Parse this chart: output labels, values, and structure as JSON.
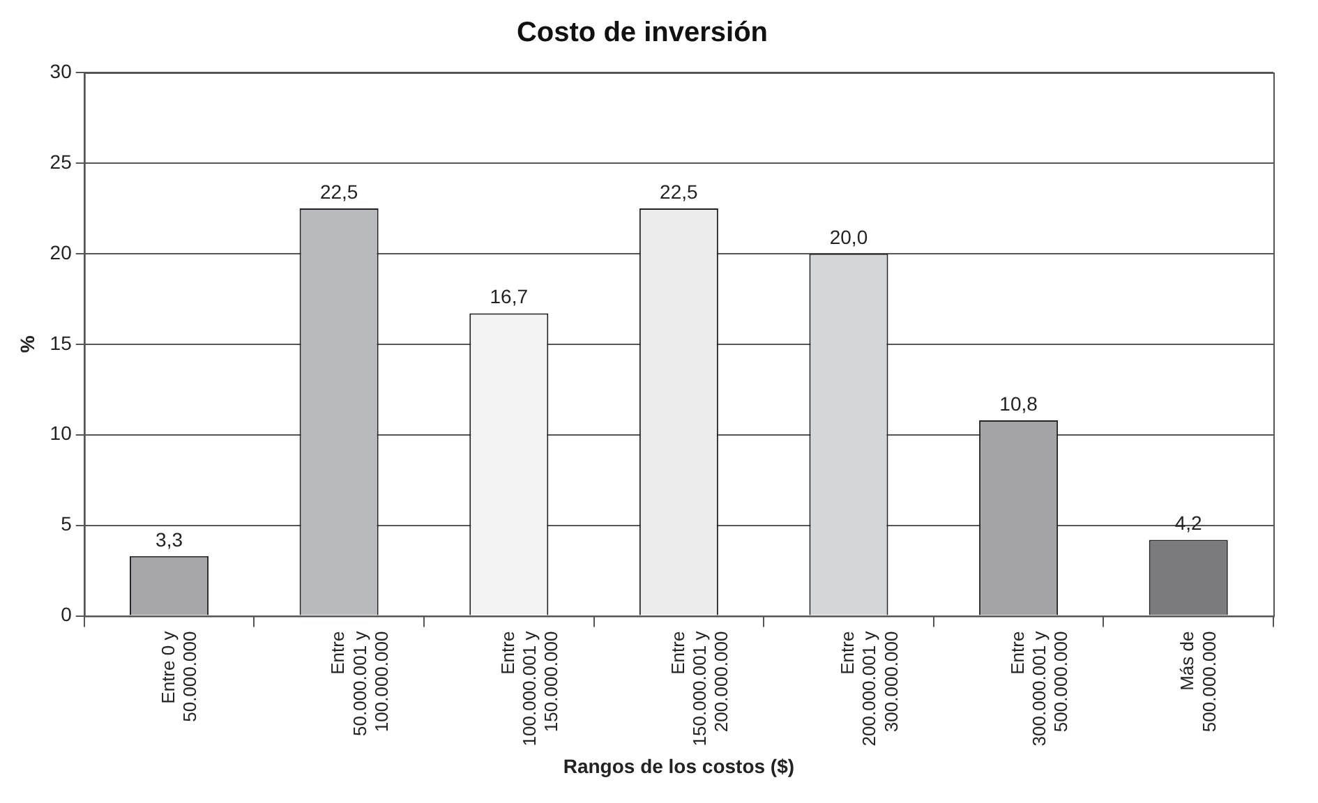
{
  "chart_data": {
    "type": "bar",
    "title": "Costo de inversión",
    "xlabel": "Rangos de los costos ($)",
    "ylabel": "%",
    "categories": [
      "Entre 0 y\n50.000.000",
      "Entre\n50.000.001 y\n100.000.000",
      "Entre\n100.000.001 y\n150.000.000",
      "Entre\n150.000.001 y\n200.000.000",
      "Entre\n200.000.001 y\n300.000.000",
      "Entre\n300.000.001 y\n500.000.000",
      "Más de\n500.000.000"
    ],
    "values": [
      3.3,
      22.5,
      16.7,
      22.5,
      20.0,
      10.8,
      4.2
    ],
    "value_labels": [
      "3,3",
      "22,5",
      "16,7",
      "22,5",
      "20,0",
      "10,8",
      "4,2"
    ],
    "colors": [
      "#a7a7a9",
      "#b9babd",
      "#f3f3f3",
      "#ececec",
      "#d5d6d8",
      "#a4a4a6",
      "#7b7b7d"
    ],
    "ylim": [
      0,
      30
    ],
    "yticks": [
      0,
      5,
      10,
      15,
      20,
      25,
      30
    ],
    "grid": "y",
    "legend": false
  }
}
